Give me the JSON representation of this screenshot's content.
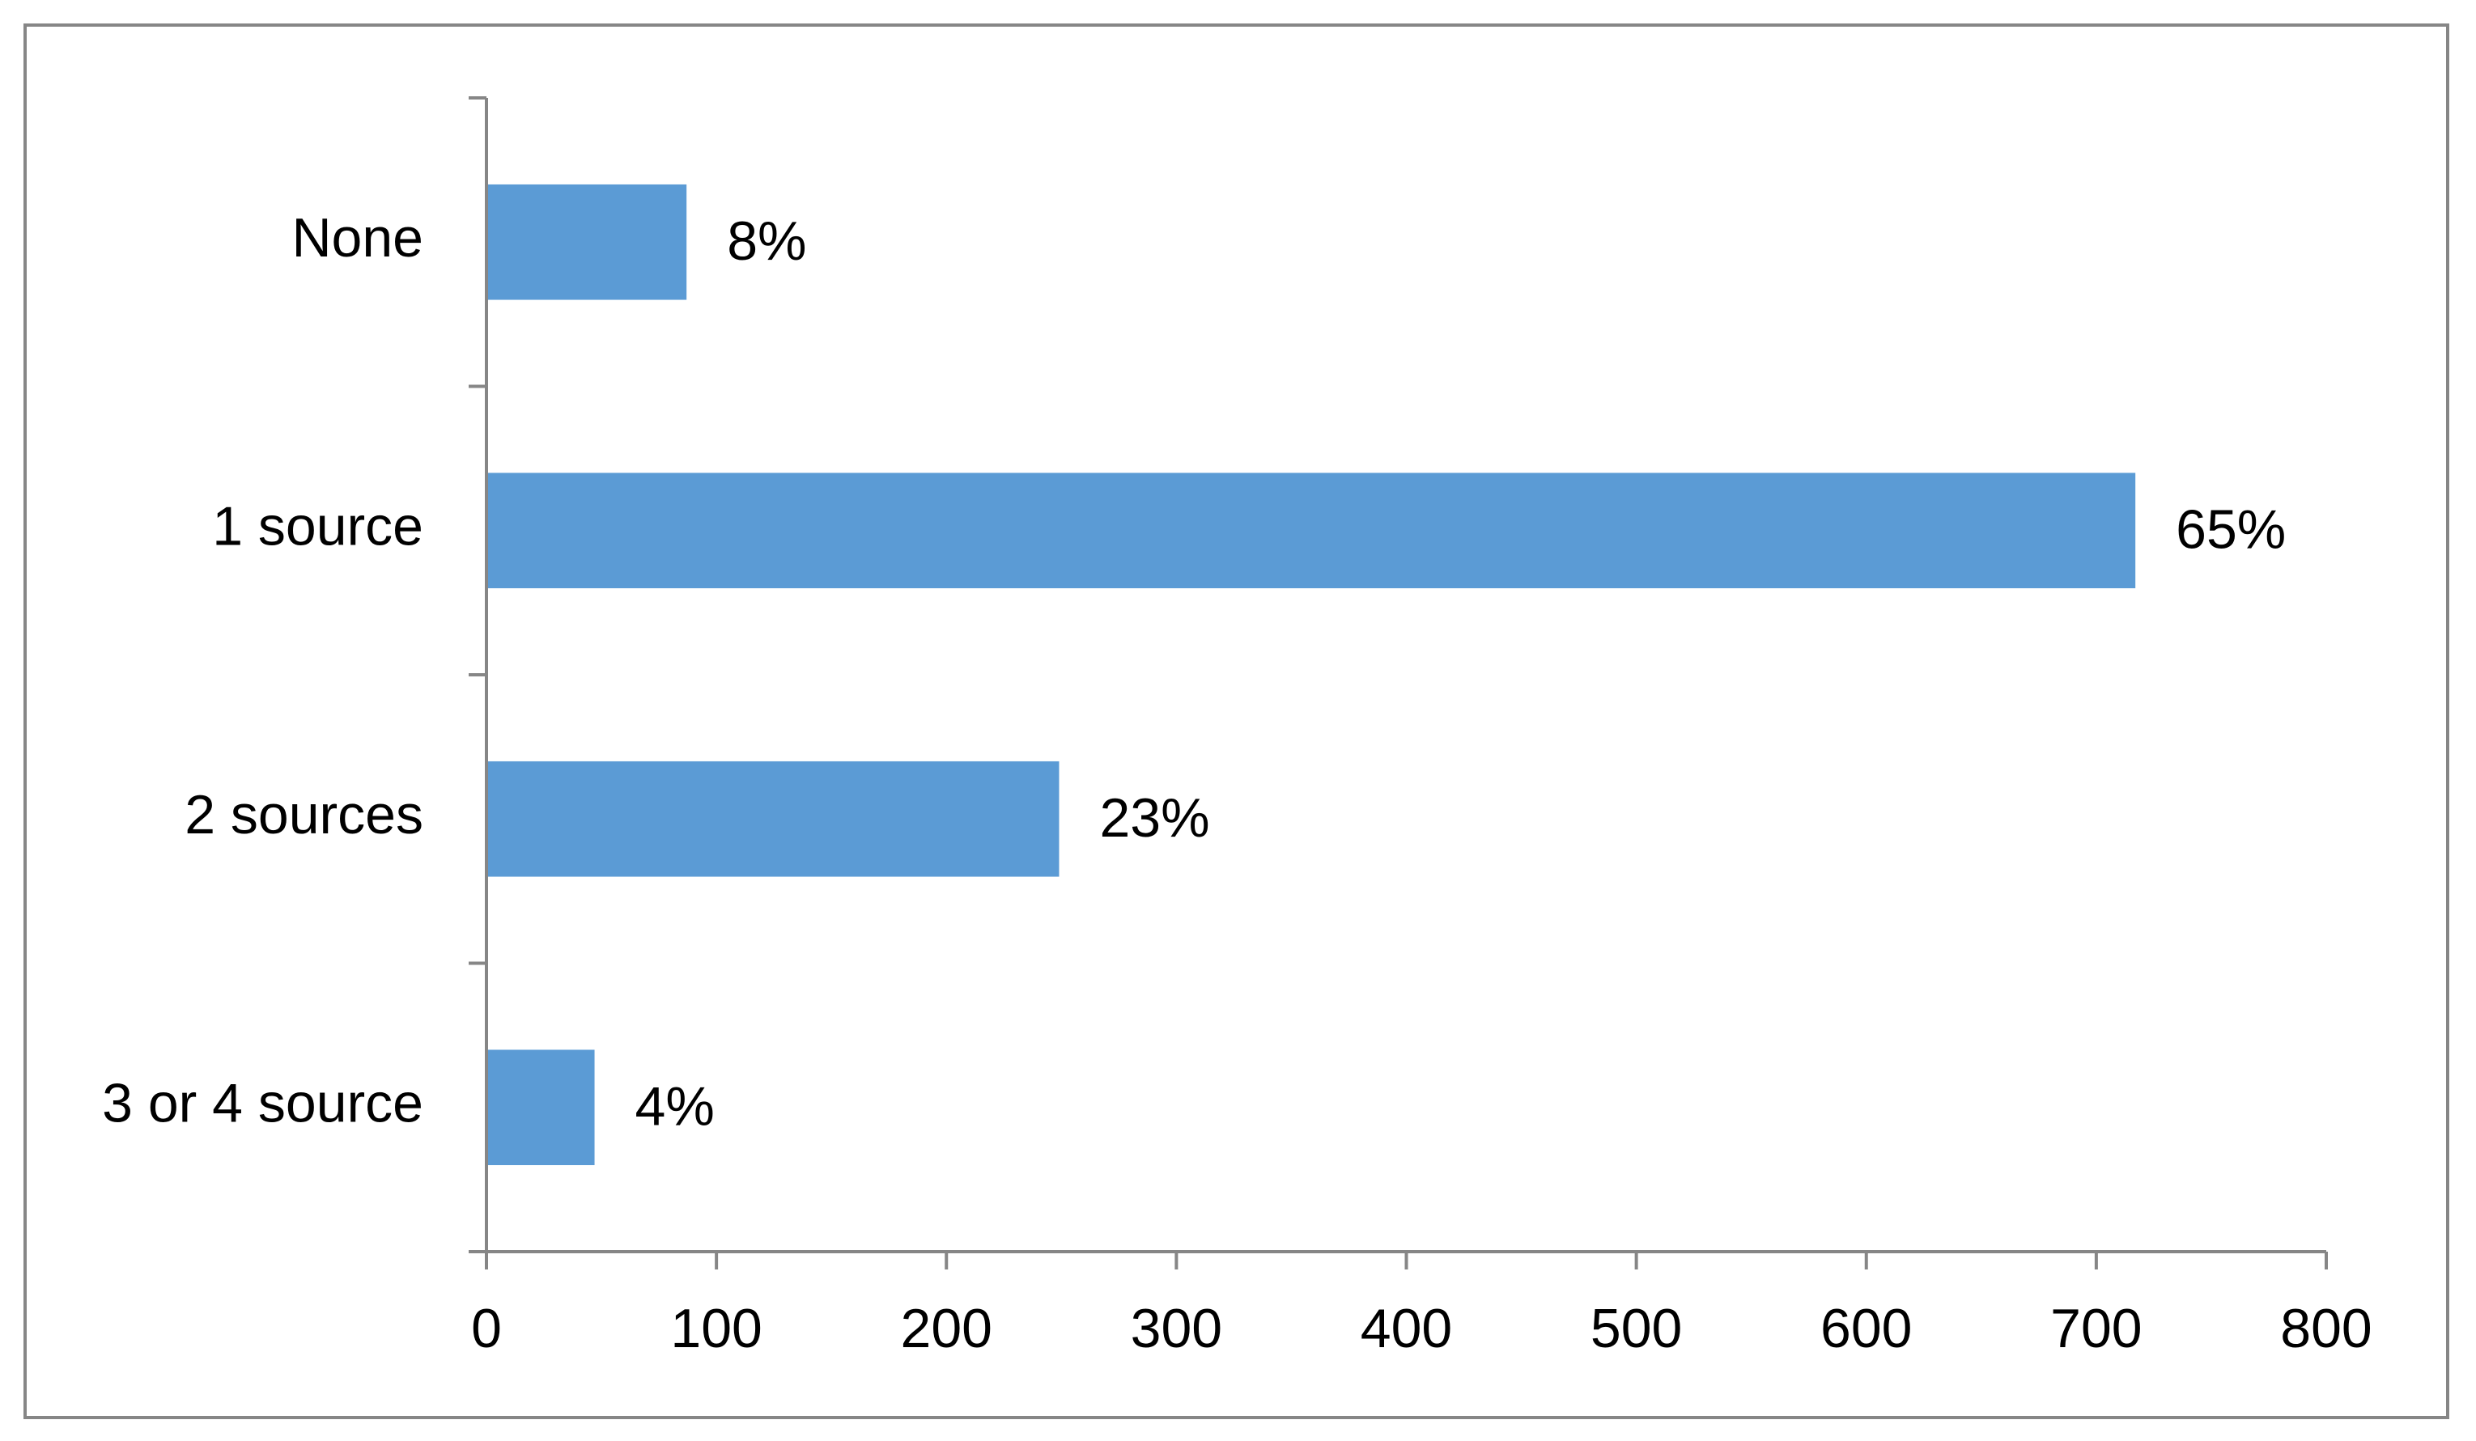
{
  "chart_data": {
    "type": "barh",
    "categories": [
      "None",
      "1 source",
      "2 sources",
      "3 or 4 source"
    ],
    "values": [
      87,
      717,
      249,
      47
    ],
    "value_labels": [
      "8%",
      "65%",
      "23%",
      "4%"
    ],
    "color": "#5b9bd5",
    "xlim": [
      0,
      800
    ],
    "xticks": [
      0,
      100,
      200,
      300,
      400,
      500,
      600,
      700,
      800
    ],
    "grid": false
  }
}
